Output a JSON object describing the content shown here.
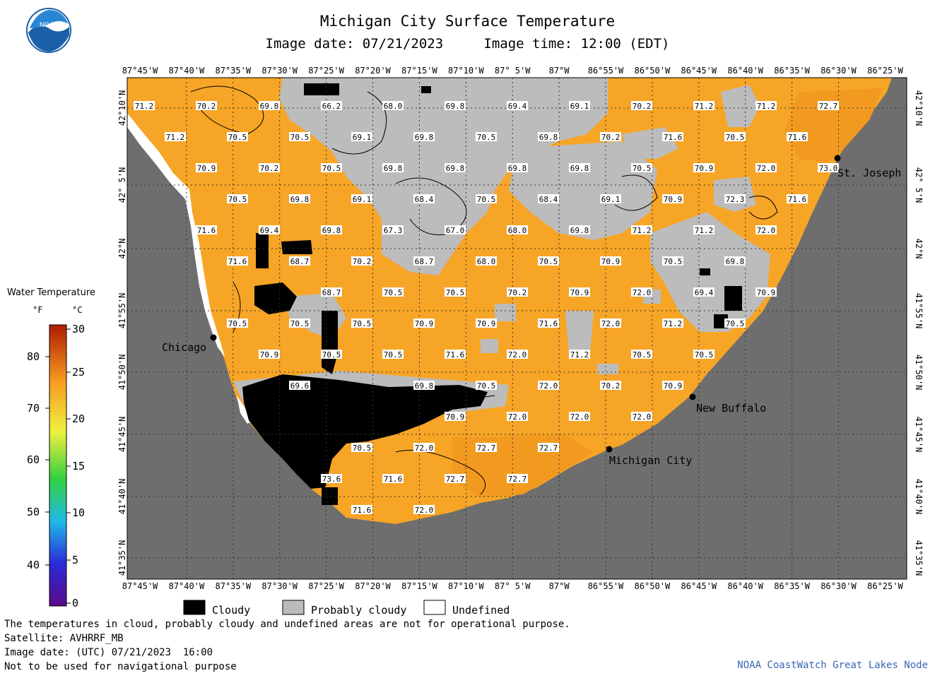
{
  "title": "Michigan City Surface Temperature",
  "subtitle": {
    "date": "Image date: 07/21/2023",
    "time": "Image time: 12:00 (EDT)"
  },
  "logo_text": "NOAA",
  "lon_ticks": [
    "87°45'W",
    "87°40'W",
    "87°35'W",
    "87°30'W",
    "87°25'W",
    "87°20'W",
    "87°15'W",
    "87°10'W",
    "87° 5'W",
    "87°W",
    "86°55'W",
    "86°50'W",
    "86°45'W",
    "86°40'W",
    "86°35'W",
    "86°30'W",
    "86°25'W"
  ],
  "lat_ticks": [
    "42°10'N",
    "42° 5'N",
    "42°N",
    "41°55'N",
    "41°50'N",
    "41°45'N",
    "41°40'N",
    "41°35'N"
  ],
  "cities": [
    {
      "name": "Chicago"
    },
    {
      "name": "St. Joseph"
    },
    {
      "name": "New Buffalo"
    },
    {
      "name": "Michigan City"
    }
  ],
  "temperature_labels": [
    "71.2",
    "70.2",
    "69.8",
    "66.2",
    "68.0",
    "69.8",
    "69.4",
    "69.1",
    "70.2",
    "71.2",
    "71.2",
    "72.7",
    "71.2",
    "70.5",
    "70.5",
    "69.1",
    "69.8",
    "70.5",
    "69.8",
    "70.2",
    "71.6",
    "70.5",
    "71.6",
    "70.9",
    "70.2",
    "70.5",
    "69.8",
    "69.8",
    "69.8",
    "69.8",
    "70.5",
    "70.9",
    "72.0",
    "73.0",
    "70.5",
    "69.8",
    "69.1",
    "68.4",
    "70.5",
    "68.4",
    "69.1",
    "70.9",
    "72.3",
    "71.6",
    "71.6",
    "69.4",
    "69.8",
    "67.3",
    "67.0",
    "68.0",
    "69.8",
    "71.2",
    "71.2",
    "72.0",
    "71.6",
    "68.7",
    "70.2",
    "68.7",
    "68.0",
    "70.5",
    "70.9",
    "70.5",
    "69.8",
    "68.7",
    "70.5",
    "70.5",
    "70.2",
    "70.9",
    "72.0",
    "69.4",
    "70.9",
    "70.5",
    "70.5",
    "70.5",
    "70.9",
    "70.9",
    "71.6",
    "72.0",
    "71.2",
    "70.5",
    "70.9",
    "70.5",
    "70.5",
    "71.6",
    "72.0",
    "71.2",
    "70.5",
    "70.5",
    "69.6",
    "69.8",
    "70.5",
    "72.0",
    "70.2",
    "70.9",
    "70.9",
    "72.0",
    "72.0",
    "72.0",
    "70.5",
    "72.0",
    "72.7",
    "72.7",
    "73.6",
    "71.6",
    "72.7",
    "72.7",
    "71.6",
    "72.0"
  ],
  "colorbar": {
    "title": "Water Temperature",
    "unit_f": "°F",
    "unit_c": "°C",
    "f_ticks": [
      "80",
      "70",
      "60",
      "50",
      "40"
    ],
    "c_ticks": [
      "30",
      "25",
      "20",
      "15",
      "10",
      "5",
      "0"
    ]
  },
  "legend": [
    {
      "label": "Cloudy",
      "color": "#000000"
    },
    {
      "label": "Probably cloudy",
      "color": "#bcbcbc"
    },
    {
      "label": "Undefined",
      "color": "#ffffff"
    }
  ],
  "colors": {
    "land": "#6e6e6e",
    "water": "#f7a526",
    "cloud": "#000000",
    "probably_cloudy": "#bcbcbc",
    "undefined": "#ffffff",
    "credit": "#3a66b3"
  },
  "footer": [
    "The temperatures in cloud, probably cloudy and undefined areas are not for operational purpose.",
    "Satellite: AVHRRF_MB",
    "Image date: (UTC) 07/21/2023  16:00",
    "Not to be used for navigational purpose"
  ],
  "credit": "NOAA CoastWatch Great Lakes Node"
}
